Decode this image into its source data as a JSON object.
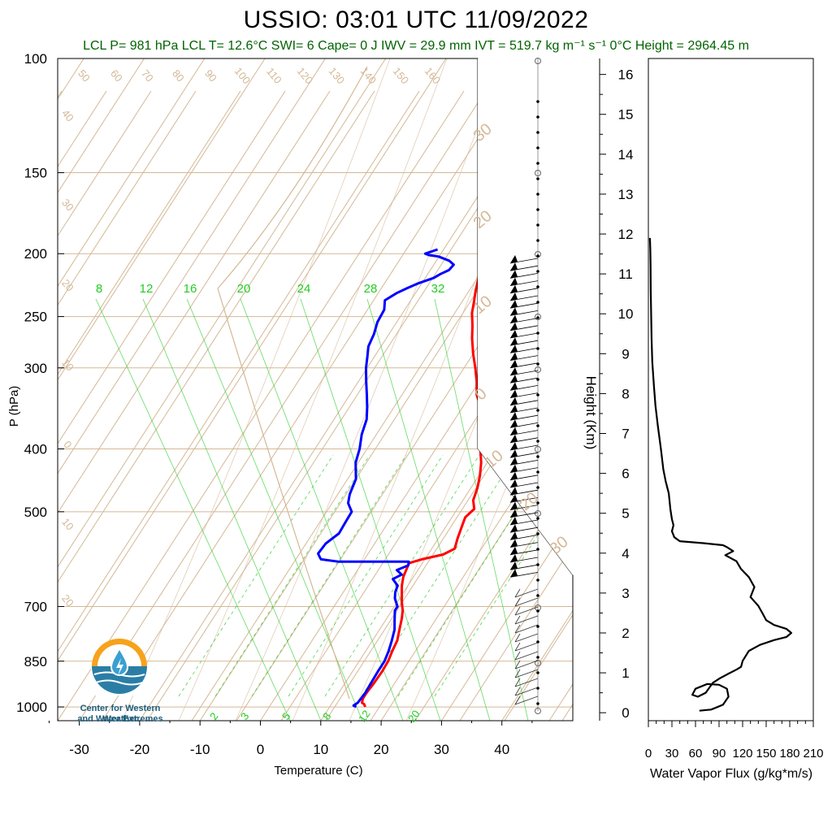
{
  "title": "USSIO: 03:01 UTC 11/09/2022",
  "subtitle": "LCL P= 981 hPa  LCL T= 12.6°C  SWI= 6  Cape= 0 J  IWV = 29.9 mm  IVT = 519.7 kg m⁻¹ s⁻¹  0°C Height = 2964.45 m",
  "logo": {
    "line1": "Center for Western Weather",
    "line2": "and Water Extremes"
  },
  "colors": {
    "temperature": "#ff0000",
    "dewpoint": "#0000ff",
    "isotherm": "#d4b896",
    "mixing_ratio": "#22cc22",
    "flux": "#000000",
    "subtitle": "#006400"
  },
  "chart_data": [
    {
      "type": "line",
      "title": "USSIO: 03:01 UTC 11/09/2022",
      "xlabel": "Temperature (C)",
      "ylabel": "P (hPa)",
      "y_scale": "log",
      "xlim": [
        -35,
        50
      ],
      "ylim": [
        1050,
        100
      ],
      "x_ticks": [
        -30,
        -20,
        -10,
        0,
        10,
        20,
        30,
        40
      ],
      "y_ticks": [
        100,
        150,
        200,
        250,
        300,
        400,
        500,
        700,
        850,
        1000
      ],
      "isotherm_labels": [
        "50",
        "60",
        "70",
        "80",
        "90",
        "100",
        "110",
        "120",
        "130",
        "140",
        "150",
        "160"
      ],
      "dry_adiabat_labels": [
        "40",
        "30",
        "20",
        "10",
        "0",
        "10",
        "20"
      ],
      "moist_adiabat_labels": [
        "30",
        "20",
        "10",
        "0",
        "10",
        "20",
        "30"
      ],
      "mixing_ratio_top_labels": [
        "8",
        "12",
        "16",
        "20",
        "24",
        "28",
        "32"
      ],
      "mixing_ratio_bottom_labels": [
        "2",
        "3",
        "5",
        "8",
        "12",
        "20"
      ],
      "series": [
        {
          "name": "Temperature",
          "points": [
            [
              15.9,
              1000
            ],
            [
              15.4,
              990
            ],
            [
              14.9,
              985
            ],
            [
              14.6,
              970
            ],
            [
              14.6,
              950
            ],
            [
              14.8,
              920
            ],
            [
              14.9,
              880
            ],
            [
              14.8,
              850
            ],
            [
              14.4,
              820
            ],
            [
              14.1,
              790
            ],
            [
              13.3,
              760
            ],
            [
              12.5,
              730
            ],
            [
              11.8,
              710
            ],
            [
              10.8,
              690
            ],
            [
              9.9,
              670
            ],
            [
              9.0,
              650
            ],
            [
              8.3,
              630
            ],
            [
              8.0,
              612
            ],
            [
              7.8,
              600
            ],
            [
              9.5,
              592
            ],
            [
              12.5,
              582
            ],
            [
              13.8,
              570
            ],
            [
              13.2,
              550
            ],
            [
              12.7,
              530
            ],
            [
              12.2,
              510
            ],
            [
              12.8,
              495
            ],
            [
              11.7,
              480
            ],
            [
              11.1,
              460
            ],
            [
              10.2,
              440
            ],
            [
              9.0,
              420
            ],
            [
              7.4,
              400
            ],
            [
              6.8,
              385
            ],
            [
              5.3,
              365
            ],
            [
              3.0,
              345
            ],
            [
              1.0,
              330
            ],
            [
              -0.4,
              315
            ],
            [
              -2.1,
              300
            ],
            [
              -4.0,
              285
            ],
            [
              -5.8,
              270
            ],
            [
              -7.1,
              258
            ],
            [
              -8.5,
              247
            ],
            [
              -9.4,
              237
            ],
            [
              -10.3,
              228
            ],
            [
              -11.0,
              220
            ],
            [
              -11.6,
              211
            ],
            [
              -11.4,
              205
            ],
            [
              -10.6,
              203
            ],
            [
              -9.6,
              201
            ],
            [
              -9.6,
              198
            ],
            [
              -9.2,
              195
            ]
          ]
        },
        {
          "name": "Dewpoint",
          "points": [
            [
              14.4,
              1000
            ],
            [
              13.8,
              995
            ],
            [
              14.2,
              985
            ],
            [
              14.3,
              970
            ],
            [
              14.4,
              950
            ],
            [
              14.3,
              920
            ],
            [
              14.2,
              880
            ],
            [
              14.2,
              850
            ],
            [
              13.8,
              820
            ],
            [
              13.2,
              790
            ],
            [
              12.5,
              760
            ],
            [
              11.5,
              735
            ],
            [
              10.5,
              710
            ],
            [
              10.5,
              700
            ],
            [
              9.2,
              680
            ],
            [
              8.6,
              665
            ],
            [
              8.3,
              650
            ],
            [
              6.8,
              635
            ],
            [
              7.8,
              625
            ],
            [
              6.5,
              615
            ],
            [
              7.9,
              605
            ],
            [
              7.6,
              597
            ],
            [
              -4.0,
              597
            ],
            [
              -7.2,
              592
            ],
            [
              -7.6,
              588
            ],
            [
              -8.3,
              580
            ],
            [
              -8.1,
              560
            ],
            [
              -7.0,
              540
            ],
            [
              -7.1,
              520
            ],
            [
              -7.2,
              500
            ],
            [
              -8.7,
              485
            ],
            [
              -9.4,
              470
            ],
            [
              -10.0,
              445
            ],
            [
              -11.8,
              420
            ],
            [
              -12.6,
              400
            ],
            [
              -13.8,
              380
            ],
            [
              -14.6,
              360
            ],
            [
              -15.8,
              345
            ],
            [
              -17.2,
              330
            ],
            [
              -18.7,
              315
            ],
            [
              -20.2,
              300
            ],
            [
              -21.2,
              288
            ],
            [
              -22.1,
              278
            ],
            [
              -22.5,
              266
            ],
            [
              -23.2,
              255
            ],
            [
              -23.4,
              244
            ],
            [
              -24.3,
              236
            ],
            [
              -23.1,
              230
            ],
            [
              -21.9,
              226
            ],
            [
              -20.5,
              222
            ],
            [
              -18.6,
              218
            ],
            [
              -17.9,
              215
            ],
            [
              -16.9,
              212
            ],
            [
              -16.7,
              208
            ],
            [
              -17.9,
              205
            ],
            [
              -20.1,
              202
            ],
            [
              -21.8,
              201
            ],
            [
              -22.6,
              200
            ],
            [
              -21.0,
              197
            ]
          ]
        }
      ]
    },
    {
      "type": "line",
      "xlabel": "Water Vapor Flux (g/kg*m/s)",
      "ylabel": "Height (Km)",
      "xlim": [
        0,
        210
      ],
      "ylim": [
        -0.2,
        16.4
      ],
      "x_ticks": [
        0,
        30,
        60,
        90,
        120,
        150,
        180,
        210
      ],
      "y_ticks": [
        0,
        1,
        2,
        3,
        4,
        5,
        6,
        7,
        8,
        9,
        10,
        11,
        12,
        13,
        14,
        15,
        16
      ],
      "series": [
        {
          "name": "Water Vapor Flux",
          "points": [
            [
              65,
              0.05
            ],
            [
              80,
              0.08
            ],
            [
              95,
              0.2
            ],
            [
              102,
              0.4
            ],
            [
              100,
              0.6
            ],
            [
              90,
              0.7
            ],
            [
              75,
              0.72
            ],
            [
              60,
              0.6
            ],
            [
              56,
              0.45
            ],
            [
              63,
              0.4
            ],
            [
              73,
              0.5
            ],
            [
              82,
              0.75
            ],
            [
              90,
              0.85
            ],
            [
              102,
              0.98
            ],
            [
              112,
              1.08
            ],
            [
              118,
              1.15
            ],
            [
              120,
              1.3
            ],
            [
              128,
              1.55
            ],
            [
              142,
              1.7
            ],
            [
              160,
              1.82
            ],
            [
              176,
              1.9
            ],
            [
              182,
              2.0
            ],
            [
              176,
              2.1
            ],
            [
              160,
              2.2
            ],
            [
              150,
              2.32
            ],
            [
              145,
              2.5
            ],
            [
              140,
              2.68
            ],
            [
              130,
              2.9
            ],
            [
              135,
              3.15
            ],
            [
              128,
              3.4
            ],
            [
              118,
              3.6
            ],
            [
              112,
              3.8
            ],
            [
              98,
              3.95
            ],
            [
              108,
              4.05
            ],
            [
              100,
              4.15
            ],
            [
              95,
              4.2
            ],
            [
              70,
              4.25
            ],
            [
              40,
              4.3
            ],
            [
              33,
              4.4
            ],
            [
              30,
              4.55
            ],
            [
              32,
              4.7
            ],
            [
              30,
              4.85
            ],
            [
              28,
              5.1
            ],
            [
              26,
              5.5
            ],
            [
              22,
              5.8
            ],
            [
              19,
              6.1
            ],
            [
              16,
              6.6
            ],
            [
              12,
              7.2
            ],
            [
              9,
              7.7
            ],
            [
              7,
              8.2
            ],
            [
              5,
              8.8
            ],
            [
              4,
              9.4
            ],
            [
              3.5,
              10
            ],
            [
              3,
              10.6
            ],
            [
              2.8,
              11.2
            ],
            [
              2.5,
              11.6
            ],
            [
              2,
              11.9
            ]
          ]
        }
      ]
    }
  ]
}
